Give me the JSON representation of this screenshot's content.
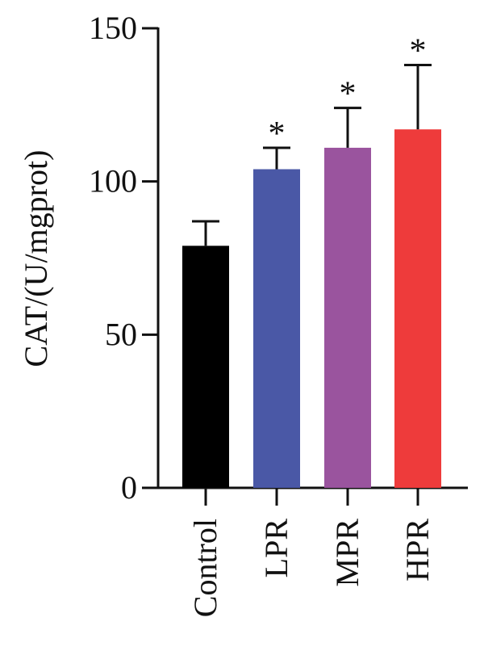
{
  "chart_data": {
    "type": "bar",
    "title": "",
    "xlabel": "",
    "ylabel": "CAT/(U/mgprot)",
    "ylim": [
      0,
      150
    ],
    "yticks": [
      0,
      50,
      100,
      150
    ],
    "grid": false,
    "categories": [
      "Control",
      "LPR",
      "MPR",
      "HPR"
    ],
    "values": [
      79,
      104,
      111,
      117
    ],
    "error_upper": [
      87,
      111,
      124,
      138
    ],
    "significance": [
      "",
      "*",
      "*",
      "*"
    ],
    "colors": [
      "#000000",
      "#4a58a6",
      "#9a549e",
      "#ee3b3b"
    ]
  }
}
